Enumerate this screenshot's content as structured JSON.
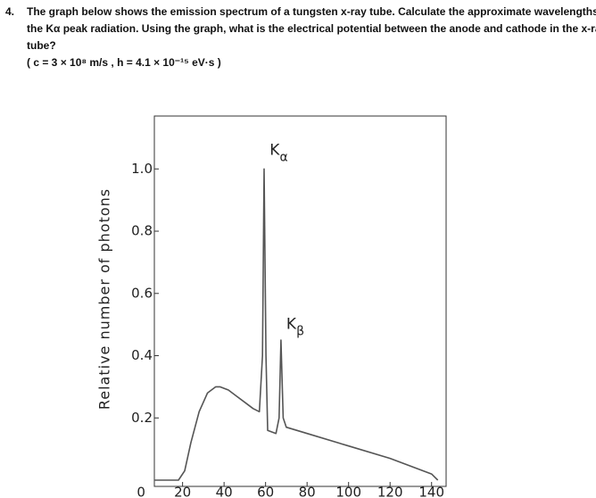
{
  "question": {
    "number": "4.",
    "lines": [
      "The graph below shows the emission spectrum of a tungsten x-ray tube. Calculate the approximate wavelengths of",
      "the Kα peak radiation. Using the graph, what is the electrical potential between the anode and cathode in the x-ray",
      "tube?"
    ],
    "constants": "( c = 3 × 10⁸ m/s , h = 4.1 × 10⁻¹⁵ eV·s )"
  },
  "chart_data": {
    "type": "line",
    "y_label": "Relative number of photons",
    "x": [
      6.4,
      18,
      21,
      24,
      28,
      32,
      36,
      38,
      42,
      46,
      50,
      54,
      57,
      58.5,
      59.3,
      60.2,
      61,
      65,
      66.5,
      67.4,
      68.5,
      70,
      80,
      100,
      120,
      140,
      143
    ],
    "series": [
      {
        "name": "spectrum",
        "color": "#555555",
        "values": [
          0,
          0,
          0.03,
          0.12,
          0.22,
          0.28,
          0.3,
          0.3,
          0.29,
          0.27,
          0.25,
          0.23,
          0.22,
          0.4,
          1.0,
          0.4,
          0.16,
          0.15,
          0.2,
          0.45,
          0.2,
          0.17,
          0.15,
          0.11,
          0.07,
          0.02,
          0
        ]
      }
    ],
    "xlim": [
      6.4,
      147
    ],
    "ylim": [
      -0.02,
      1.17
    ],
    "xticks": [
      0,
      20,
      40,
      60,
      80,
      100,
      120,
      140
    ],
    "yticks": [
      0.2,
      0.4,
      0.6,
      0.8,
      {
        "value": 1,
        "label": "1.0"
      }
    ],
    "annotations": [
      {
        "main": "K",
        "sub": "α",
        "x": 62,
        "y": 1.06
      },
      {
        "main": "K",
        "sub": "β",
        "x": 70,
        "y": 0.5
      }
    ]
  }
}
